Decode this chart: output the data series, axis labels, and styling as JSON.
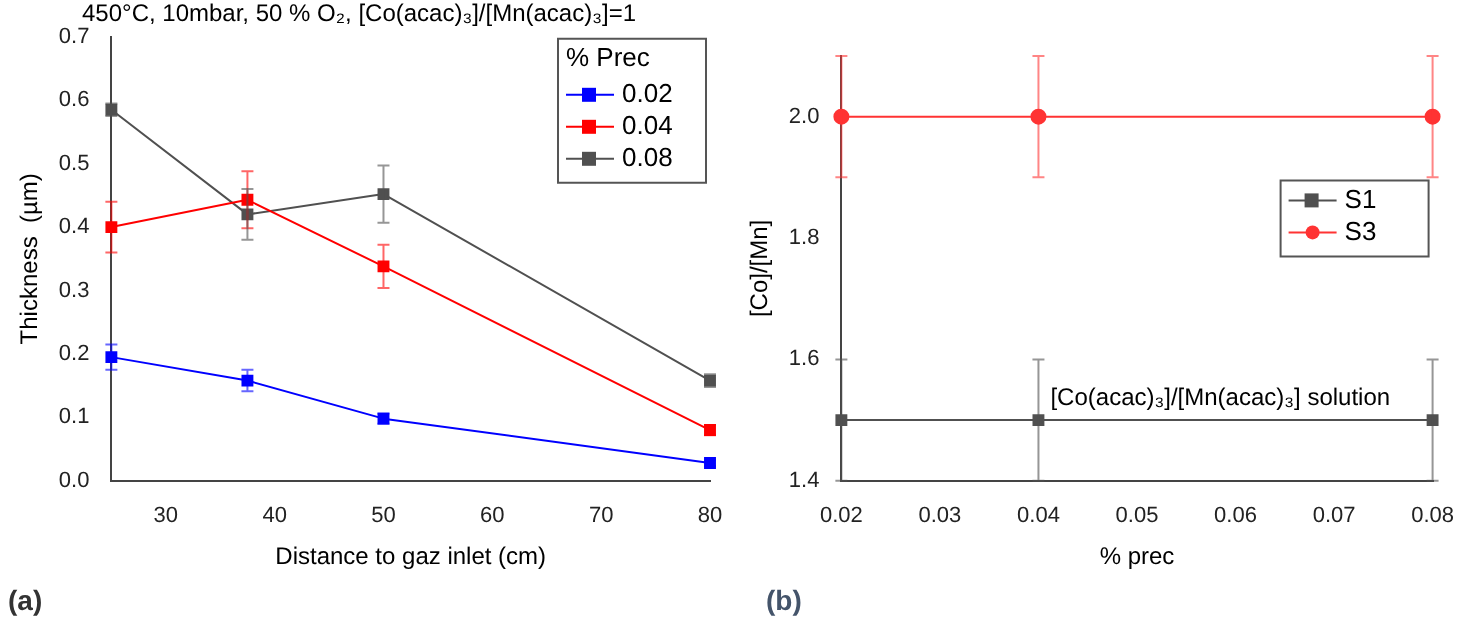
{
  "chart_data": [
    {
      "type": "line",
      "title": "450°C, 10mbar, 50 % O₂, [Co(acac)₃]/[Mn(acac)₃]=1",
      "xlabel": "Distance to gaz inlet (cm)",
      "ylabel": "Thickness  (µm)",
      "legend_title": "% Prec",
      "legend": "top right",
      "grid": false,
      "marker": "square",
      "line_style": "solid",
      "x": [
        25,
        37.5,
        50,
        80
      ],
      "xlim": [
        25,
        80
      ],
      "xticks": [
        30,
        40,
        50,
        60,
        70,
        80
      ],
      "ylim": [
        0,
        0.7
      ],
      "yticks": [
        {
          "value": 0,
          "label": "0.0"
        },
        0.1,
        0.2,
        0.3,
        0.4,
        0.5,
        0.6,
        0.7
      ],
      "series": [
        {
          "name": "0.02",
          "color": "#0000ff",
          "values": [
            0.195,
            0.158,
            0.098,
            0.028
          ],
          "errors": [
            0.02,
            0.017,
            0.008,
            0.005
          ]
        },
        {
          "name": "0.04",
          "color": "#ff0000",
          "values": [
            0.4,
            0.443,
            0.338,
            0.08
          ],
          "errors": [
            0.04,
            0.045,
            0.034,
            0.008
          ]
        },
        {
          "name": "0.08",
          "color": "#505050",
          "values": [
            0.585,
            0.42,
            0.452,
            0.158
          ],
          "errors": [
            0.01,
            0.04,
            0.045,
            0.01
          ]
        }
      ],
      "annotations": [
        "(a)"
      ]
    },
    {
      "type": "line",
      "xlabel": "% prec",
      "ylabel": "[Co]/[Mn]",
      "legend": "right",
      "grid": false,
      "line_style": "solid",
      "x": [
        0.02,
        0.04,
        0.08
      ],
      "xlim": [
        0.02,
        0.08
      ],
      "xticks": [
        0.02,
        0.03,
        0.04,
        0.05,
        0.06,
        0.07,
        0.08
      ],
      "ylim": [
        1.4,
        2.1
      ],
      "yticks": [
        1.4,
        1.6,
        1.8,
        {
          "value": 2,
          "label": "2.0"
        }
      ],
      "series": [
        {
          "name": "S1",
          "color": "#505050",
          "marker": "square",
          "values": [
            1.5,
            1.5,
            1.5
          ],
          "errors": [
            0.1,
            0.1,
            0.1
          ]
        },
        {
          "name": "S3",
          "color": "#ff3333",
          "marker": "circle",
          "values": [
            2.0,
            2.0,
            2.0
          ],
          "errors": [
            0.1,
            0.1,
            0.1
          ]
        }
      ],
      "annotations": [
        {
          "text": "[Co(acac)₃]/[Mn(acac)₃] solution",
          "x": 0.04,
          "y": 1.5
        },
        "(b)"
      ]
    }
  ]
}
